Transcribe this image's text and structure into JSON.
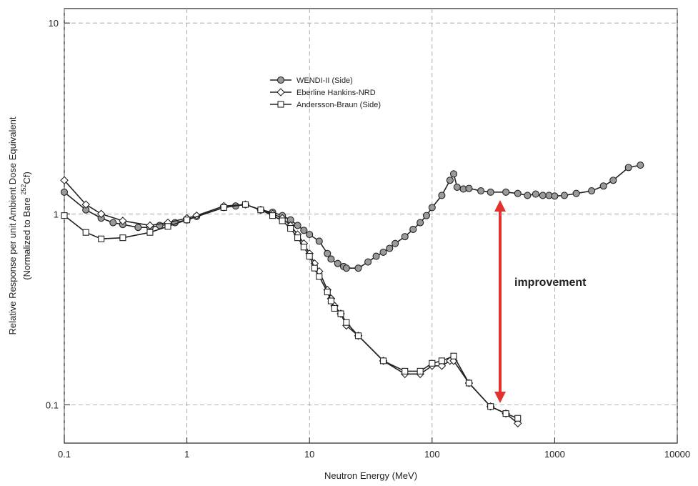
{
  "chart_data": {
    "type": "line",
    "xlabel": "Neutron Energy (MeV)",
    "ylabel": "Relative Response per unit Ambient Dose Equivalent",
    "ylabel2": {
      "text": "(Normalized to Bare ",
      "sup": "252",
      "suffix": "Cf)"
    },
    "annotation": "improvement",
    "annotation_color": "#e53030",
    "xscale": "log",
    "yscale": "log",
    "xlim": [
      0.1,
      10000
    ],
    "ylim": [
      0.063,
      11.9
    ],
    "xticks": [
      0.1,
      1,
      10,
      100,
      1000,
      10000
    ],
    "yticks": [
      0.1,
      1,
      10
    ],
    "grid": true,
    "legend": "upper center",
    "series": [
      {
        "name": "WENDI-II (Side)",
        "marker": "circle",
        "color": "#222222",
        "marker_fill": "#9a9a9a",
        "x": [
          0.1,
          0.15,
          0.2,
          0.25,
          0.3,
          0.4,
          0.5,
          0.6,
          0.7,
          0.8,
          1,
          1.2,
          2,
          2.5,
          3,
          4,
          5,
          6,
          7,
          8,
          9,
          10,
          12,
          14,
          15,
          17,
          19,
          20,
          25,
          30,
          35,
          40,
          45,
          50,
          60,
          70,
          80,
          90,
          100,
          120,
          140,
          150,
          160,
          180,
          200,
          250,
          300,
          400,
          500,
          600,
          700,
          800,
          900,
          1000,
          1200,
          1500,
          2000,
          2500,
          3000,
          4000,
          5000
        ],
        "values": [
          1.3,
          1.05,
          0.95,
          0.9,
          0.88,
          0.85,
          0.85,
          0.87,
          0.88,
          0.9,
          0.93,
          0.97,
          1.08,
          1.1,
          1.12,
          1.05,
          1.02,
          0.98,
          0.93,
          0.87,
          0.82,
          0.78,
          0.72,
          0.62,
          0.58,
          0.55,
          0.53,
          0.52,
          0.52,
          0.56,
          0.6,
          0.63,
          0.66,
          0.7,
          0.76,
          0.83,
          0.9,
          0.98,
          1.08,
          1.25,
          1.5,
          1.62,
          1.38,
          1.35,
          1.36,
          1.32,
          1.3,
          1.3,
          1.28,
          1.25,
          1.27,
          1.25,
          1.25,
          1.24,
          1.25,
          1.28,
          1.32,
          1.4,
          1.5,
          1.75,
          1.8
        ]
      },
      {
        "name": "Eberline Hankins-NRD",
        "marker": "diamond",
        "color": "#222222",
        "marker_fill": "#ffffff",
        "x": [
          0.1,
          0.15,
          0.2,
          0.3,
          0.5,
          0.7,
          1,
          1.2,
          2,
          3,
          4,
          5,
          6,
          7,
          8,
          9,
          10,
          11,
          12,
          14,
          15,
          16,
          18,
          20,
          25,
          40,
          60,
          80,
          100,
          120,
          140,
          150,
          200,
          300,
          400,
          500
        ],
        "values": [
          1.5,
          1.12,
          1.0,
          0.92,
          0.87,
          0.9,
          0.95,
          0.98,
          1.1,
          1.12,
          1.05,
          1.0,
          0.95,
          0.87,
          0.78,
          0.7,
          0.62,
          0.55,
          0.5,
          0.4,
          0.36,
          0.33,
          0.3,
          0.26,
          0.23,
          0.17,
          0.145,
          0.145,
          0.16,
          0.16,
          0.17,
          0.17,
          0.13,
          0.098,
          0.09,
          0.08
        ]
      },
      {
        "name": "Andersson-Braun (Side)",
        "marker": "square",
        "color": "#222222",
        "marker_fill": "#ffffff",
        "x": [
          0.1,
          0.15,
          0.2,
          0.3,
          0.5,
          0.7,
          1,
          2,
          3,
          4,
          5,
          6,
          7,
          8,
          9,
          10,
          11,
          12,
          14,
          15,
          16,
          18,
          20,
          25,
          40,
          60,
          80,
          100,
          120,
          150,
          200,
          300,
          400,
          500
        ],
        "values": [
          0.98,
          0.8,
          0.74,
          0.75,
          0.8,
          0.86,
          0.93,
          1.08,
          1.12,
          1.05,
          0.98,
          0.92,
          0.84,
          0.75,
          0.67,
          0.6,
          0.52,
          0.47,
          0.39,
          0.35,
          0.32,
          0.3,
          0.27,
          0.23,
          0.17,
          0.15,
          0.15,
          0.165,
          0.17,
          0.18,
          0.13,
          0.098,
          0.09,
          0.085
        ]
      }
    ]
  }
}
